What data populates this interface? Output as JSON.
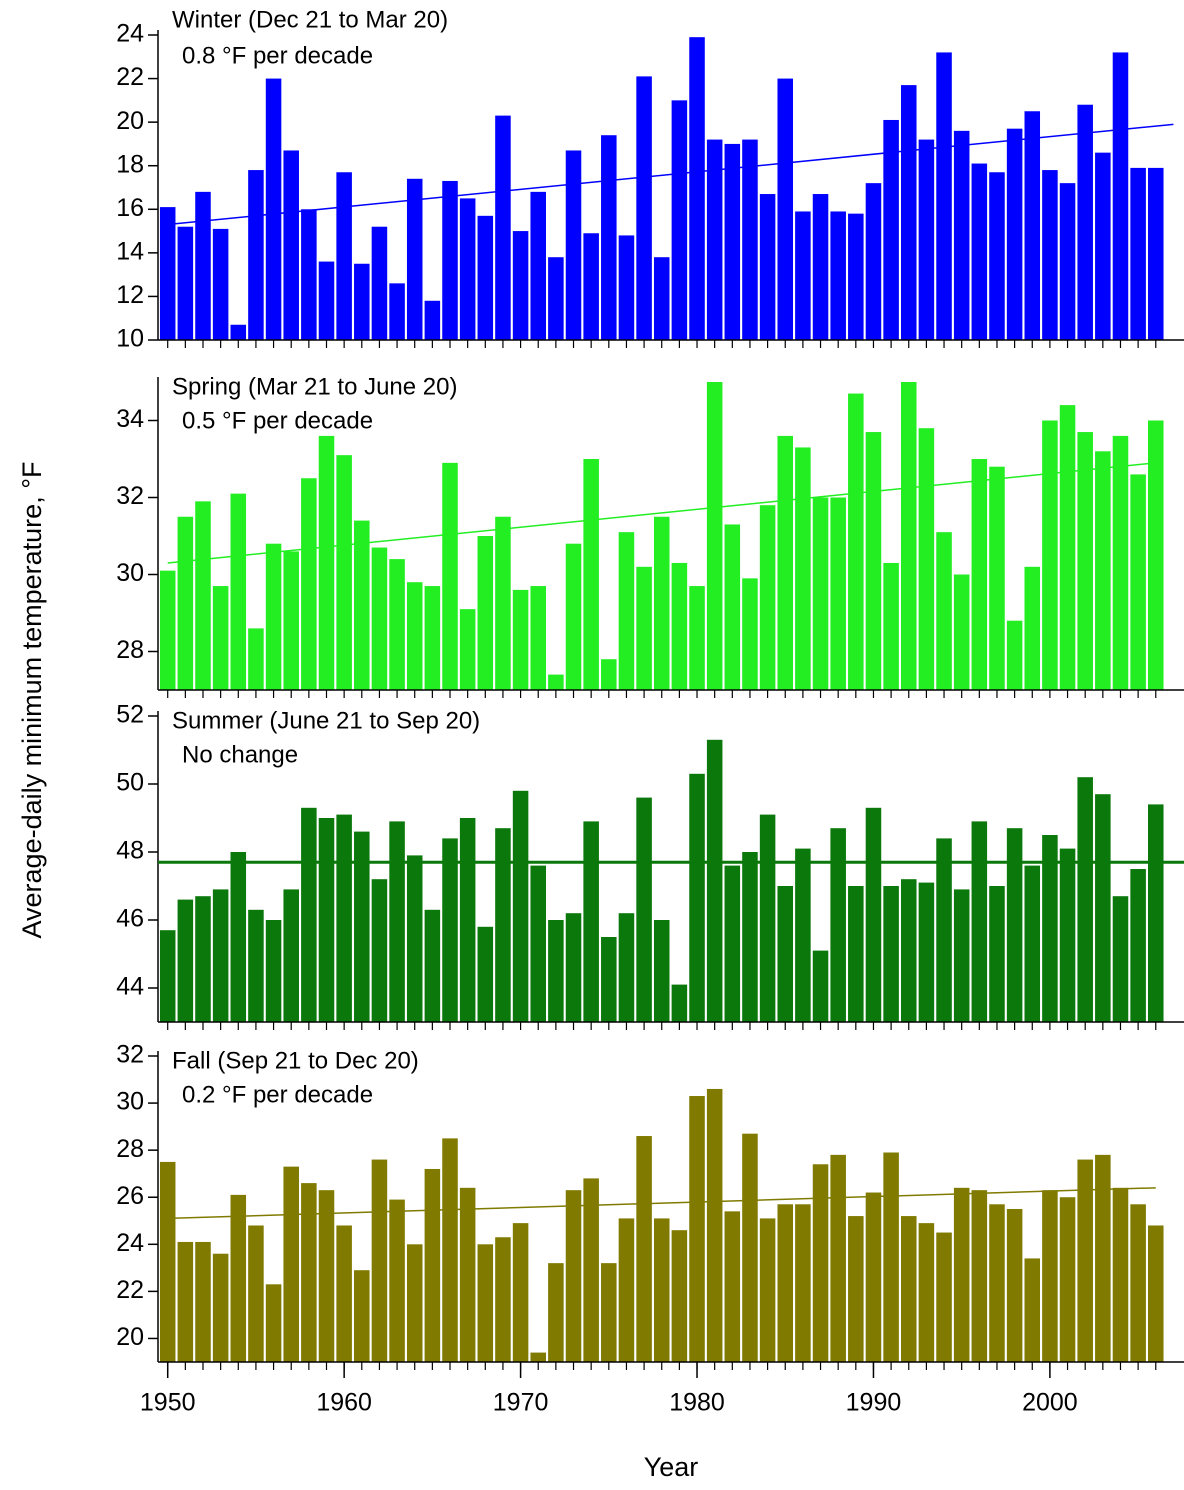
{
  "ylabel": "Average-daily minimum temperature, °F",
  "chart_data": [
    {
      "type": "bar",
      "title": "Winter (Dec 21 to Mar 20)",
      "subtitle": "0.8 °F per decade",
      "color": "#0000ff",
      "x": [
        1950,
        1951,
        1952,
        1953,
        1954,
        1955,
        1956,
        1957,
        1958,
        1959,
        1960,
        1961,
        1962,
        1963,
        1964,
        1965,
        1966,
        1967,
        1968,
        1969,
        1970,
        1971,
        1972,
        1973,
        1974,
        1975,
        1976,
        1977,
        1978,
        1979,
        1980,
        1981,
        1982,
        1983,
        1984,
        1985,
        1986,
        1987,
        1988,
        1989,
        1990,
        1991,
        1992,
        1993,
        1994,
        1995,
        1996,
        1997,
        1998,
        1999,
        2000,
        2001,
        2002,
        2003,
        2004,
        2005,
        2006
      ],
      "values": [
        16.1,
        15.2,
        16.8,
        15.1,
        10.7,
        17.8,
        22.0,
        18.7,
        16.0,
        13.6,
        17.7,
        13.5,
        15.2,
        12.6,
        17.4,
        11.8,
        17.3,
        16.5,
        15.7,
        20.3,
        15.0,
        16.8,
        13.8,
        18.7,
        14.9,
        19.4,
        14.8,
        22.1,
        13.8,
        21.0,
        23.9,
        19.2,
        19.0,
        19.2,
        16.7,
        22.0,
        15.9,
        16.7,
        15.9,
        15.8,
        17.2,
        20.1,
        21.7,
        19.2,
        23.2,
        19.6,
        18.1,
        17.7,
        19.7,
        20.5,
        17.8,
        17.2,
        20.8,
        18.6,
        23.2,
        17.9,
        17.9
      ],
      "xlim": [
        1949.45,
        2007.6
      ],
      "ylim": [
        10,
        24
      ],
      "yticks": [
        10,
        12,
        14,
        16,
        18,
        20,
        22,
        24
      ],
      "trend": {
        "x": [
          1950,
          2007
        ],
        "values": [
          15.3,
          19.9
        ],
        "color": "#0000ff"
      }
    },
    {
      "type": "bar",
      "title": "Spring (Mar 21 to June 20)",
      "subtitle": "0.5 °F per decade",
      "color": "#22ee22",
      "x": [
        1950,
        1951,
        1952,
        1953,
        1954,
        1955,
        1956,
        1957,
        1958,
        1959,
        1960,
        1961,
        1962,
        1963,
        1964,
        1965,
        1966,
        1967,
        1968,
        1969,
        1970,
        1971,
        1972,
        1973,
        1974,
        1975,
        1976,
        1977,
        1978,
        1979,
        1980,
        1981,
        1982,
        1983,
        1984,
        1985,
        1986,
        1987,
        1988,
        1989,
        1990,
        1991,
        1992,
        1993,
        1994,
        1995,
        1996,
        1997,
        1998,
        1999,
        2000,
        2001,
        2002,
        2003,
        2004,
        2005,
        2006
      ],
      "values": [
        30.1,
        31.5,
        31.9,
        29.7,
        32.1,
        28.6,
        30.8,
        30.6,
        32.5,
        33.6,
        33.1,
        31.4,
        30.7,
        30.4,
        29.8,
        29.7,
        32.9,
        29.1,
        31.0,
        31.5,
        29.6,
        29.7,
        27.4,
        30.8,
        33.0,
        27.8,
        31.1,
        30.2,
        31.5,
        30.3,
        29.7,
        35.0,
        31.3,
        29.9,
        31.8,
        33.6,
        33.3,
        32.0,
        32.0,
        34.7,
        33.7,
        30.3,
        35.0,
        33.8,
        31.1,
        30.0,
        33.0,
        32.8,
        28.8,
        30.2,
        34.0,
        34.4,
        33.7,
        33.2,
        33.6,
        32.6,
        34.0
      ],
      "xlim": [
        1949.45,
        2007.6
      ],
      "ylim": [
        27,
        35
      ],
      "yticks": [
        28,
        30,
        32,
        34
      ],
      "trend": {
        "x": [
          1950,
          2006
        ],
        "values": [
          30.3,
          32.9
        ],
        "color": "#22ee22"
      }
    },
    {
      "type": "bar",
      "title": "Summer (June 21 to Sep 20)",
      "subtitle": "No change",
      "color": "#0a780a",
      "x": [
        1950,
        1951,
        1952,
        1953,
        1954,
        1955,
        1956,
        1957,
        1958,
        1959,
        1960,
        1961,
        1962,
        1963,
        1964,
        1965,
        1966,
        1967,
        1968,
        1969,
        1970,
        1971,
        1972,
        1973,
        1974,
        1975,
        1976,
        1977,
        1978,
        1979,
        1980,
        1981,
        1982,
        1983,
        1984,
        1985,
        1986,
        1987,
        1988,
        1989,
        1990,
        1991,
        1992,
        1993,
        1994,
        1995,
        1996,
        1997,
        1998,
        1999,
        2000,
        2001,
        2002,
        2003,
        2004,
        2005,
        2006
      ],
      "values": [
        45.7,
        46.6,
        46.7,
        46.9,
        48.0,
        46.3,
        46.0,
        46.9,
        49.3,
        49.0,
        49.1,
        48.6,
        47.2,
        48.9,
        47.9,
        46.3,
        48.4,
        49.0,
        45.8,
        48.7,
        49.8,
        47.6,
        46.0,
        46.2,
        48.9,
        45.5,
        46.2,
        49.6,
        46.0,
        44.1,
        50.3,
        51.3,
        47.6,
        48.0,
        49.1,
        47.0,
        48.1,
        45.1,
        48.7,
        47.0,
        49.3,
        47.0,
        47.2,
        47.1,
        48.4,
        46.9,
        48.9,
        47.0,
        48.7,
        47.6,
        48.5,
        48.1,
        50.2,
        49.7,
        46.7,
        47.5,
        49.4
      ],
      "xlim": [
        1949.45,
        2007.6
      ],
      "ylim": [
        43,
        52
      ],
      "yticks": [
        44,
        46,
        48,
        50,
        52
      ],
      "trend": {
        "x": [
          1949.45,
          2007.6
        ],
        "values": [
          47.7,
          47.7
        ],
        "color": "#0a780a"
      }
    },
    {
      "type": "bar",
      "title": "Fall (Sep 21 to Dec 20)",
      "subtitle": "0.2 °F per decade",
      "color": "#807a00",
      "x": [
        1950,
        1951,
        1952,
        1953,
        1954,
        1955,
        1956,
        1957,
        1958,
        1959,
        1960,
        1961,
        1962,
        1963,
        1964,
        1965,
        1966,
        1967,
        1968,
        1969,
        1970,
        1971,
        1972,
        1973,
        1974,
        1975,
        1976,
        1977,
        1978,
        1979,
        1980,
        1981,
        1982,
        1983,
        1984,
        1985,
        1986,
        1987,
        1988,
        1989,
        1990,
        1991,
        1992,
        1993,
        1994,
        1995,
        1996,
        1997,
        1998,
        1999,
        2000,
        2001,
        2002,
        2003,
        2004,
        2005,
        2006
      ],
      "values": [
        27.5,
        24.1,
        24.1,
        23.6,
        26.1,
        24.8,
        22.3,
        27.3,
        26.6,
        26.3,
        24.8,
        22.9,
        27.6,
        25.9,
        24.0,
        27.2,
        28.5,
        26.4,
        24.0,
        24.3,
        24.9,
        19.4,
        23.2,
        26.3,
        26.8,
        23.2,
        25.1,
        28.6,
        25.1,
        24.6,
        30.3,
        30.6,
        25.4,
        28.7,
        25.1,
        25.7,
        25.7,
        27.4,
        27.8,
        25.2,
        26.2,
        27.9,
        25.2,
        24.9,
        24.5,
        26.4,
        26.3,
        25.7,
        25.5,
        23.4,
        26.3,
        26.0,
        27.6,
        27.8,
        26.4,
        25.7,
        24.8
      ],
      "xlim": [
        1949.45,
        2007.6
      ],
      "ylim": [
        19,
        32
      ],
      "yticks": [
        20,
        22,
        24,
        26,
        28,
        30,
        32
      ],
      "xticks": [
        1950,
        1960,
        1970,
        1980,
        1990,
        2000
      ],
      "xlabel": "Year",
      "trend": {
        "x": [
          1950,
          2006
        ],
        "values": [
          25.1,
          26.4
        ],
        "color": "#807a00"
      }
    }
  ]
}
